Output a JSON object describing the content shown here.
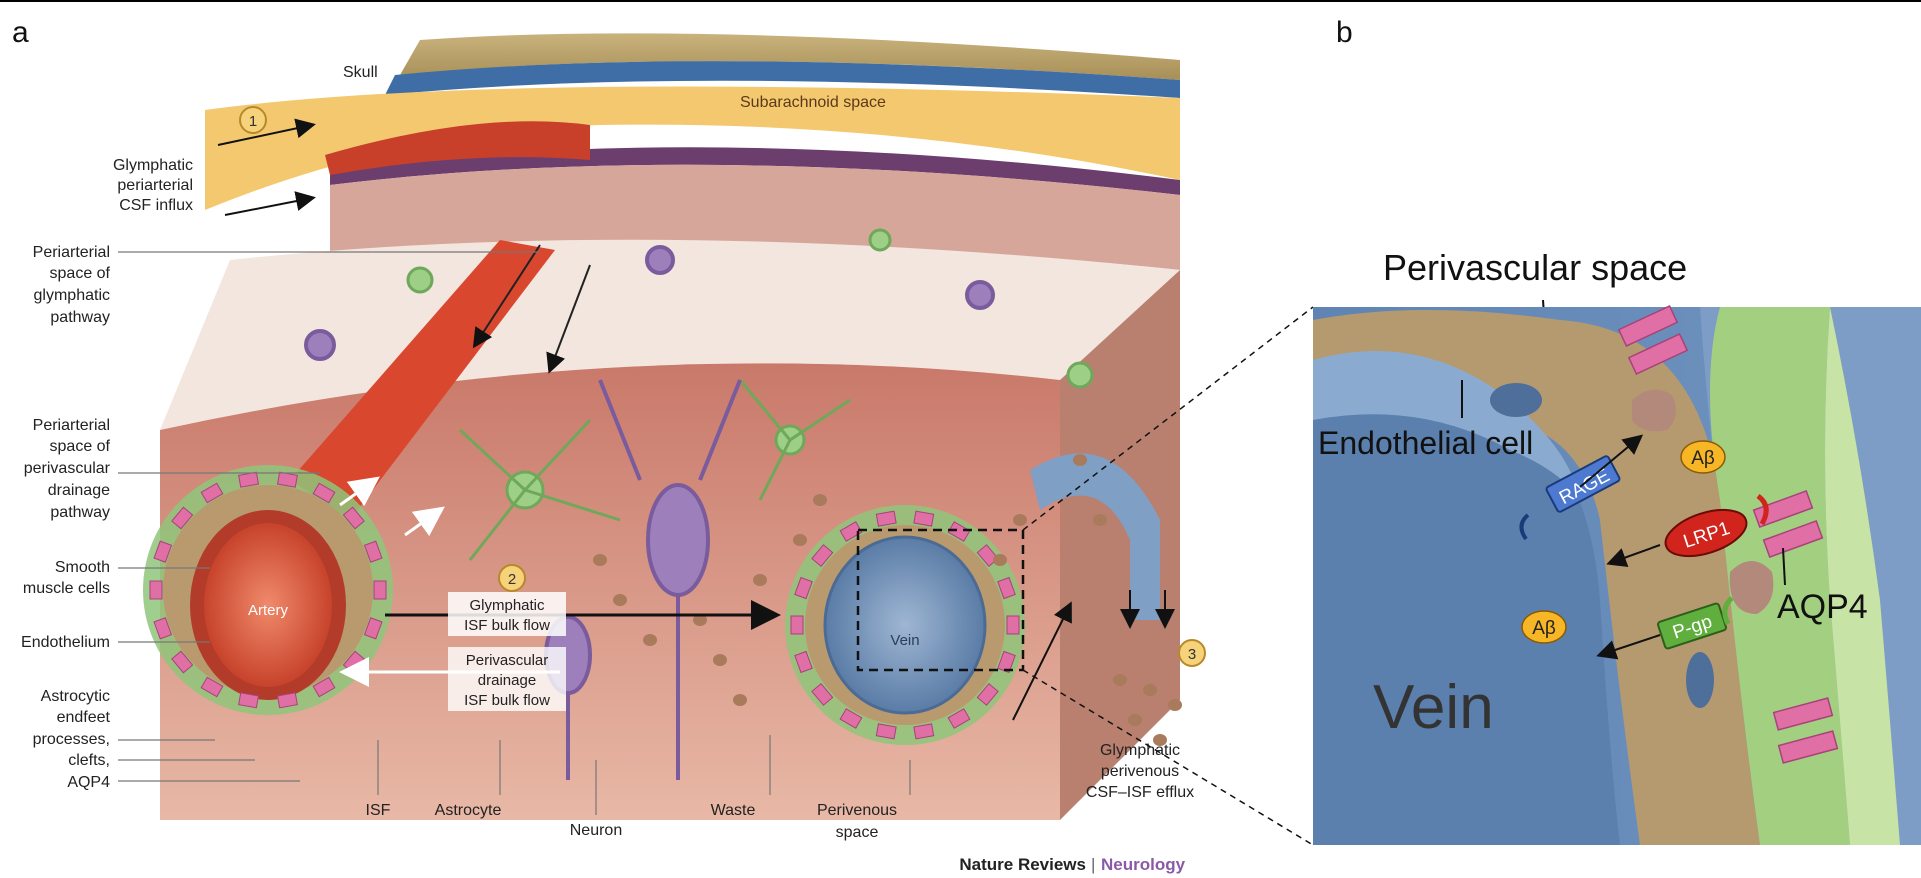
{
  "panel_a": {
    "letter": "a",
    "labels": {
      "skull": "Skull",
      "subarachnoid": "Subarachnoid space",
      "step1": "1",
      "step2": "2",
      "step3": "3",
      "influx": [
        "Glymphatic",
        "periarterial",
        "CSF influx"
      ],
      "periarterial_glymph": [
        "Periarterial",
        "space of",
        "glymphatic",
        "pathway"
      ],
      "periarterial_drain": [
        "Periarterial",
        "space of",
        "perivascular",
        "drainage",
        "pathway"
      ],
      "smooth_muscle": [
        "Smooth",
        "muscle cells"
      ],
      "endothelium": "Endothelium",
      "astro_endfeet": [
        "Astrocytic",
        "endfeet",
        "processes,",
        "clefts,",
        "AQP4"
      ],
      "isf": "ISF",
      "astrocyte": "Astrocyte",
      "neuron": "Neuron",
      "waste": "Waste",
      "perivenous": [
        "Perivenous",
        "space"
      ],
      "efflux": [
        "Glymphatic",
        "perivenous",
        "CSF–ISF efflux"
      ],
      "artery": "Artery",
      "vein": "Vein",
      "bulk_flow": [
        "Glymphatic",
        "ISF bulk flow"
      ],
      "drain_flow": [
        "Perivascular",
        "drainage",
        "ISF bulk flow"
      ]
    },
    "credit_left": "Nature Reviews",
    "credit_sep": "|",
    "credit_right": "Neurology"
  },
  "panel_b": {
    "letter": "b",
    "title": "Perivascular space",
    "endothelial": "Endothelial cell",
    "vein": "Vein",
    "rage": "RAGE",
    "lrp1": "LRP1",
    "pgp": "P-gp",
    "abeta": "Aβ",
    "aqp4": "AQP4"
  },
  "colors": {
    "vessel_red": "#d9472e",
    "vein_blue": "#5c7fa8",
    "astro_green": "#8fc57a",
    "aqp4_pink": "#e06fa6",
    "csf_yellow": "#f6d27a",
    "neuron_purple": "#8f6fae"
  }
}
